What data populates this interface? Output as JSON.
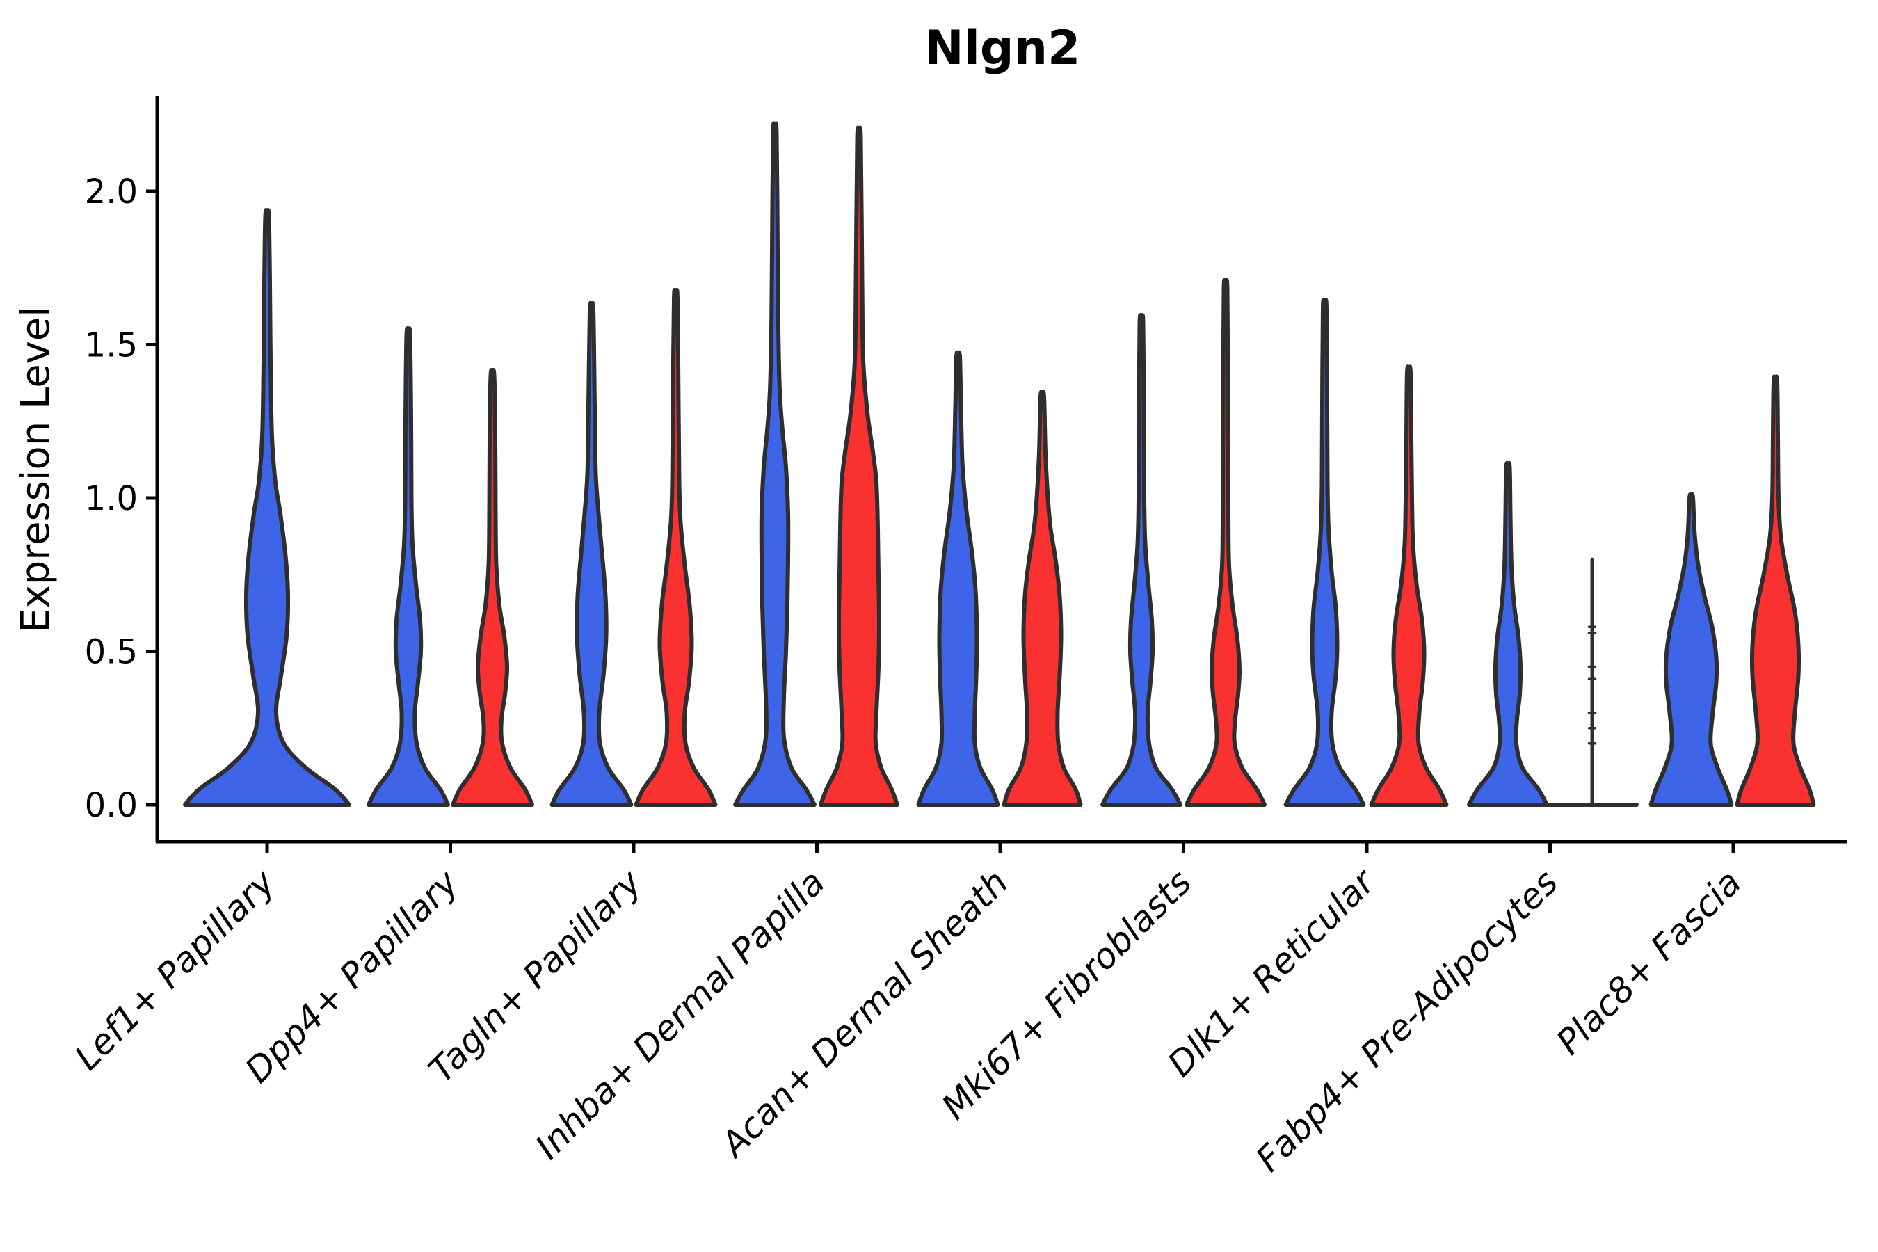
{
  "title": "Nlgn2",
  "axes": {
    "y_label": "Expression Level",
    "x_label": ""
  },
  "chart_data": {
    "type": "violin",
    "title": "Nlgn2",
    "xlabel": "",
    "ylabel": "Expression Level",
    "ylim": [
      -0.12,
      2.31
    ],
    "grid": false,
    "legend": "none",
    "y_ticks": [
      {
        "label": "0.0",
        "value": 0.0
      },
      {
        "label": "0.5",
        "value": 0.5
      },
      {
        "label": "1.0",
        "value": 1.0
      },
      {
        "label": "1.5",
        "value": 1.5
      },
      {
        "label": "2.0",
        "value": 2.0
      }
    ],
    "categories": [
      "Lef1+ Papillary",
      "Dpp4+ Papillary",
      "Tagln+ Papillary",
      "Inhba+ Dermal Papilla",
      "Acan+ Dermal Sheath",
      "Mki67+ Fibroblasts",
      "Dlk1+ Reticular",
      "Fabp4+ Pre-Adipocytes",
      "Plac8+ Fascia"
    ],
    "series": [
      {
        "name": "blue",
        "color": "#3E64E8",
        "violins": [
          {
            "category": "Lef1+ Papillary",
            "max": 1.92,
            "centered": true,
            "profile": [
              [
                0,
                118
              ],
              [
                0.05,
                98
              ],
              [
                0.12,
                56
              ],
              [
                0.2,
                24
              ],
              [
                0.3,
                13
              ],
              [
                0.42,
                20
              ],
              [
                0.55,
                28
              ],
              [
                0.68,
                30
              ],
              [
                0.8,
                27
              ],
              [
                0.95,
                19
              ],
              [
                1.05,
                12
              ],
              [
                1.2,
                7
              ],
              [
                1.45,
                5
              ],
              [
                1.7,
                4
              ],
              [
                1.92,
                2.5
              ]
            ]
          },
          {
            "category": "Dpp4+ Papillary",
            "max": 1.53,
            "profile": [
              [
                0,
                57
              ],
              [
                0.05,
                46
              ],
              [
                0.12,
                24
              ],
              [
                0.2,
                12
              ],
              [
                0.3,
                9.5
              ],
              [
                0.4,
                14
              ],
              [
                0.5,
                18
              ],
              [
                0.6,
                17
              ],
              [
                0.72,
                11
              ],
              [
                0.85,
                6
              ],
              [
                1.0,
                4.5
              ],
              [
                1.25,
                4
              ],
              [
                1.53,
                2.5
              ]
            ]
          },
          {
            "category": "Tagln+ Papillary",
            "max": 1.61,
            "profile": [
              [
                0,
                57
              ],
              [
                0.05,
                46
              ],
              [
                0.12,
                24
              ],
              [
                0.2,
                12
              ],
              [
                0.3,
                11
              ],
              [
                0.42,
                17
              ],
              [
                0.55,
                21
              ],
              [
                0.68,
                20
              ],
              [
                0.82,
                15
              ],
              [
                0.95,
                10
              ],
              [
                1.08,
                6
              ],
              [
                1.3,
                4.5
              ],
              [
                1.61,
                2.5
              ]
            ]
          },
          {
            "category": "Inhba+ Dermal Papilla",
            "max": 2.19,
            "profile": [
              [
                0,
                57
              ],
              [
                0.05,
                45
              ],
              [
                0.12,
                24
              ],
              [
                0.22,
                13
              ],
              [
                0.35,
                13
              ],
              [
                0.5,
                16
              ],
              [
                0.65,
                18
              ],
              [
                0.8,
                19
              ],
              [
                0.95,
                19
              ],
              [
                1.1,
                16
              ],
              [
                1.22,
                11
              ],
              [
                1.35,
                7
              ],
              [
                1.55,
                5
              ],
              [
                1.8,
                4
              ],
              [
                2.19,
                2.5
              ]
            ]
          },
          {
            "category": "Acan+ Dermal Sheath",
            "max": 1.46,
            "profile": [
              [
                0,
                57
              ],
              [
                0.05,
                49
              ],
              [
                0.12,
                32
              ],
              [
                0.2,
                24
              ],
              [
                0.3,
                24
              ],
              [
                0.42,
                26
              ],
              [
                0.55,
                27
              ],
              [
                0.7,
                25
              ],
              [
                0.82,
                20
              ],
              [
                0.92,
                14
              ],
              [
                1.0,
                10
              ],
              [
                1.12,
                6
              ],
              [
                1.3,
                4
              ],
              [
                1.46,
                2.5
              ]
            ]
          },
          {
            "category": "Mki67+ Fibroblasts",
            "max": 1.57,
            "profile": [
              [
                0,
                56
              ],
              [
                0.05,
                44
              ],
              [
                0.12,
                21
              ],
              [
                0.2,
                11
              ],
              [
                0.3,
                9
              ],
              [
                0.4,
                13
              ],
              [
                0.5,
                16
              ],
              [
                0.6,
                15
              ],
              [
                0.72,
                10
              ],
              [
                0.85,
                5.5
              ],
              [
                1.0,
                4
              ],
              [
                1.25,
                3.5
              ],
              [
                1.57,
                2.5
              ]
            ]
          },
          {
            "category": "Dlk1+ Reticular",
            "max": 1.62,
            "profile": [
              [
                0,
                56
              ],
              [
                0.05,
                44
              ],
              [
                0.12,
                22
              ],
              [
                0.2,
                11
              ],
              [
                0.3,
                10
              ],
              [
                0.42,
                16
              ],
              [
                0.52,
                18
              ],
              [
                0.64,
                16
              ],
              [
                0.76,
                10
              ],
              [
                0.9,
                5.5
              ],
              [
                1.05,
                4
              ],
              [
                1.3,
                3.5
              ],
              [
                1.62,
                2.5
              ]
            ]
          },
          {
            "category": "Fabp4+ Pre-Adipocytes",
            "max": 1.1,
            "profile": [
              [
                0,
                56
              ],
              [
                0.05,
                44
              ],
              [
                0.12,
                21
              ],
              [
                0.2,
                12
              ],
              [
                0.28,
                13
              ],
              [
                0.36,
                17
              ],
              [
                0.45,
                18
              ],
              [
                0.55,
                15
              ],
              [
                0.65,
                9
              ],
              [
                0.78,
                5
              ],
              [
                0.95,
                3.5
              ],
              [
                1.1,
                2.5
              ]
            ]
          },
          {
            "category": "Plac8+ Fascia",
            "max": 1.0,
            "profile": [
              [
                0,
                58
              ],
              [
                0.05,
                51
              ],
              [
                0.12,
                38
              ],
              [
                0.2,
                28
              ],
              [
                0.3,
                31
              ],
              [
                0.4,
                36
              ],
              [
                0.48,
                36
              ],
              [
                0.58,
                30
              ],
              [
                0.68,
                19
              ],
              [
                0.78,
                10
              ],
              [
                0.88,
                5
              ],
              [
                1.0,
                2.5
              ]
            ]
          }
        ]
      },
      {
        "name": "red",
        "color": "#F93131",
        "violins": [
          null,
          {
            "category": "Dpp4+ Papillary",
            "max": 1.4,
            "profile": [
              [
                0,
                57
              ],
              [
                0.05,
                47
              ],
              [
                0.12,
                26
              ],
              [
                0.2,
                14
              ],
              [
                0.28,
                13
              ],
              [
                0.36,
                18
              ],
              [
                0.45,
                21
              ],
              [
                0.55,
                17
              ],
              [
                0.65,
                10
              ],
              [
                0.78,
                5.5
              ],
              [
                0.95,
                4.5
              ],
              [
                1.2,
                4
              ],
              [
                1.4,
                2.5
              ]
            ]
          },
          {
            "category": "Tagln+ Papillary",
            "max": 1.65,
            "profile": [
              [
                0,
                57
              ],
              [
                0.05,
                47
              ],
              [
                0.12,
                26
              ],
              [
                0.2,
                14
              ],
              [
                0.3,
                13
              ],
              [
                0.4,
                19
              ],
              [
                0.52,
                23
              ],
              [
                0.65,
                20
              ],
              [
                0.78,
                13
              ],
              [
                0.92,
                7
              ],
              [
                1.05,
                5
              ],
              [
                1.3,
                4
              ],
              [
                1.65,
                2.5
              ]
            ]
          },
          {
            "category": "Inhba+ Dermal Papilla",
            "max": 2.17,
            "profile": [
              [
                0,
                55
              ],
              [
                0.05,
                47
              ],
              [
                0.12,
                32
              ],
              [
                0.2,
                24
              ],
              [
                0.3,
                25
              ],
              [
                0.45,
                28
              ],
              [
                0.6,
                29
              ],
              [
                0.75,
                28
              ],
              [
                0.9,
                27
              ],
              [
                1.05,
                25
              ],
              [
                1.15,
                20
              ],
              [
                1.28,
                12
              ],
              [
                1.45,
                6
              ],
              [
                1.7,
                4.5
              ],
              [
                2.17,
                2.5
              ]
            ]
          },
          {
            "category": "Acan+ Dermal Sheath",
            "max": 1.33,
            "profile": [
              [
                0,
                55
              ],
              [
                0.05,
                48
              ],
              [
                0.12,
                31
              ],
              [
                0.2,
                23
              ],
              [
                0.3,
                22
              ],
              [
                0.42,
                25
              ],
              [
                0.55,
                27
              ],
              [
                0.68,
                25
              ],
              [
                0.8,
                19
              ],
              [
                0.9,
                12
              ],
              [
                1.0,
                8
              ],
              [
                1.15,
                4.5
              ],
              [
                1.33,
                2.5
              ]
            ]
          },
          {
            "category": "Mki67+ Fibroblasts",
            "max": 1.68,
            "profile": [
              [
                0,
                56
              ],
              [
                0.05,
                45
              ],
              [
                0.12,
                24
              ],
              [
                0.2,
                13
              ],
              [
                0.28,
                14
              ],
              [
                0.36,
                18
              ],
              [
                0.44,
                20
              ],
              [
                0.54,
                17
              ],
              [
                0.65,
                10
              ],
              [
                0.78,
                5
              ],
              [
                0.95,
                4
              ],
              [
                1.3,
                3.5
              ],
              [
                1.68,
                2.5
              ]
            ]
          },
          {
            "category": "Dlk1+ Reticular",
            "max": 1.41,
            "profile": [
              [
                0,
                54
              ],
              [
                0.05,
                44
              ],
              [
                0.12,
                25
              ],
              [
                0.2,
                14
              ],
              [
                0.3,
                15
              ],
              [
                0.4,
                20
              ],
              [
                0.5,
                22
              ],
              [
                0.6,
                19
              ],
              [
                0.72,
                11
              ],
              [
                0.85,
                6
              ],
              [
                1.0,
                4.5
              ],
              [
                1.2,
                3.5
              ],
              [
                1.41,
                2.5
              ]
            ]
          },
          {
            "category": "Fabp4+ Pre-Adipocytes",
            "max": 0.8,
            "line": true,
            "base_halfwidth": 64,
            "points": [
              0.2,
              0.25,
              0.3,
              0.41,
              0.45,
              0.56,
              0.58
            ]
          },
          {
            "category": "Plac8+ Fascia",
            "max": 1.38,
            "profile": [
              [
                0,
                55
              ],
              [
                0.05,
                49
              ],
              [
                0.12,
                36
              ],
              [
                0.2,
                26
              ],
              [
                0.3,
                28
              ],
              [
                0.42,
                33
              ],
              [
                0.52,
                33
              ],
              [
                0.63,
                28
              ],
              [
                0.75,
                17
              ],
              [
                0.87,
                8
              ],
              [
                1.0,
                4.5
              ],
              [
                1.2,
                3.5
              ],
              [
                1.38,
                2.5
              ]
            ]
          }
        ]
      }
    ],
    "outline_color": "#2E2E2E",
    "axis_color": "#000000"
  }
}
